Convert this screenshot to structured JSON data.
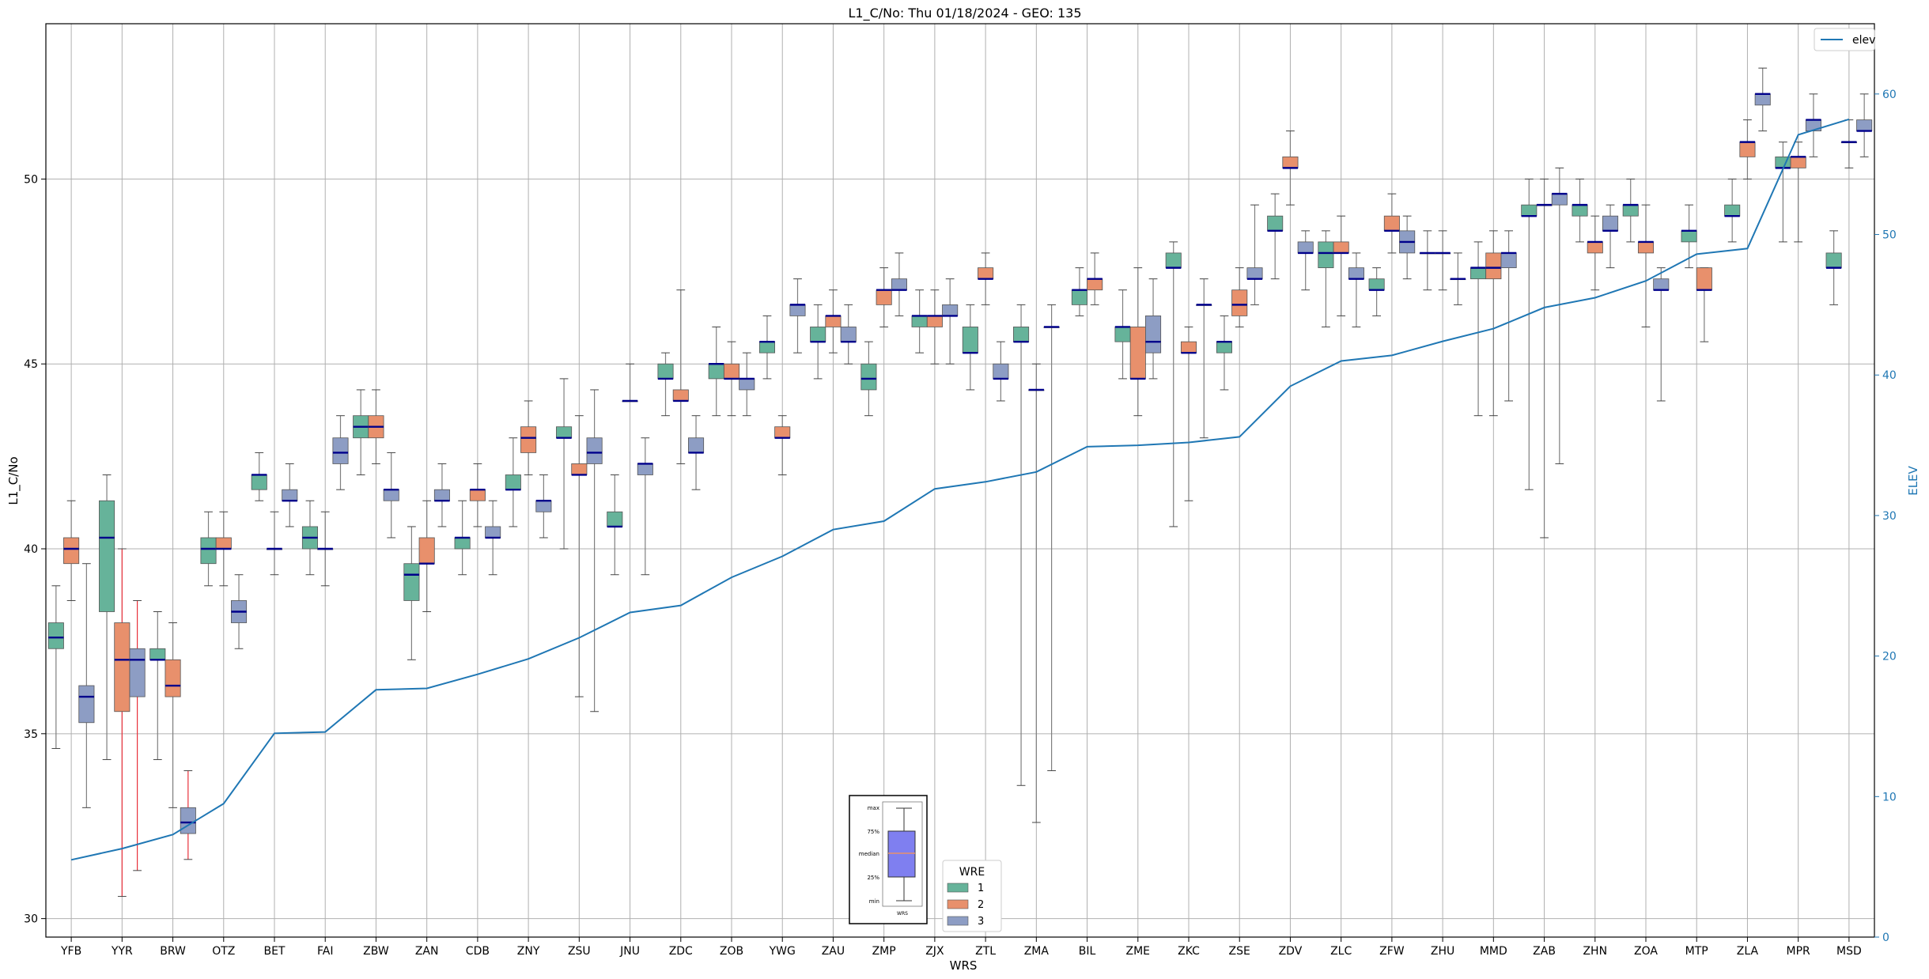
{
  "chart_data": {
    "type": "box",
    "title": "L1_C/No: Thu 01/18/2024 - GEO: 135",
    "xlabel": "WRS",
    "ylabel": "L1_C/No",
    "y2label": "ELEV",
    "ylim": [
      29.5,
      54.2
    ],
    "y2lim": [
      0,
      65.0
    ],
    "yticks": [
      30,
      35,
      40,
      45,
      50
    ],
    "y2ticks": [
      0,
      10,
      20,
      30,
      40,
      50,
      60
    ],
    "grid": true,
    "colors": {
      "1": "#66b39a",
      "2": "#e8906c",
      "3": "#8d9dc4",
      "elev": "#1f77b4",
      "median": "#00008b",
      "whisker": "#7f7f7f",
      "red_whisker": "#e8303a"
    },
    "categories": [
      "YFB",
      "YYR",
      "BRW",
      "OTZ",
      "BET",
      "FAI",
      "ZBW",
      "ZAN",
      "CDB",
      "ZNY",
      "ZSU",
      "JNU",
      "ZDC",
      "ZOB",
      "YWG",
      "ZAU",
      "ZMP",
      "ZJX",
      "ZTL",
      "ZMA",
      "BIL",
      "ZME",
      "ZKC",
      "ZSE",
      "ZDV",
      "ZLC",
      "ZFW",
      "ZHU",
      "MMD",
      "ZAB",
      "ZHN",
      "ZOA",
      "MTP",
      "ZLA",
      "MPR",
      "MSD"
    ],
    "boxes": {
      "YFB": [
        [
          34.6,
          37.3,
          37.6,
          38.0,
          39.0
        ],
        [
          38.6,
          39.6,
          40.0,
          40.3,
          41.3
        ],
        [
          33.0,
          35.3,
          36.0,
          36.3,
          39.6
        ]
      ],
      "YYR": [
        [
          34.3,
          38.3,
          40.3,
          41.3,
          42.0
        ],
        [
          30.6,
          35.6,
          37.0,
          38.0,
          40.0,
          "red"
        ],
        [
          31.3,
          36.0,
          37.0,
          37.3,
          38.6,
          "red"
        ]
      ],
      "BRW": [
        [
          34.3,
          37.0,
          37.0,
          37.3,
          38.3
        ],
        [
          33.0,
          36.0,
          36.3,
          37.0,
          38.0
        ],
        [
          31.6,
          32.3,
          32.6,
          33.0,
          34.0,
          "red"
        ]
      ],
      "OTZ": [
        [
          39.0,
          39.6,
          40.0,
          40.3,
          41.0
        ],
        [
          39.0,
          40.0,
          40.0,
          40.3,
          41.0
        ],
        [
          37.3,
          38.0,
          38.3,
          38.6,
          39.3
        ]
      ],
      "BET": [
        [
          41.3,
          41.6,
          42.0,
          42.0,
          42.6
        ],
        [
          39.3,
          40.0,
          40.0,
          40.0,
          41.0
        ],
        [
          40.6,
          41.3,
          41.3,
          41.6,
          42.3
        ]
      ],
      "FAI": [
        [
          39.3,
          40.0,
          40.3,
          40.6,
          41.3
        ],
        [
          39.0,
          40.0,
          40.0,
          40.0,
          41.0
        ],
        [
          41.6,
          42.3,
          42.6,
          43.0,
          43.6
        ]
      ],
      "ZBW": [
        [
          42.0,
          43.0,
          43.3,
          43.6,
          44.3
        ],
        [
          42.3,
          43.0,
          43.3,
          43.6,
          44.3
        ],
        [
          40.3,
          41.3,
          41.6,
          41.6,
          42.6
        ]
      ],
      "ZAN": [
        [
          37.0,
          38.6,
          39.3,
          39.6,
          40.6
        ],
        [
          38.3,
          39.6,
          39.6,
          40.3,
          41.3
        ],
        [
          40.6,
          41.3,
          41.3,
          41.6,
          42.3
        ]
      ],
      "CDB": [
        [
          39.3,
          40.0,
          40.3,
          40.3,
          41.3
        ],
        [
          40.6,
          41.3,
          41.6,
          41.6,
          42.3
        ],
        [
          39.3,
          40.3,
          40.3,
          40.6,
          41.3
        ]
      ],
      "ZNY": [
        [
          40.6,
          41.6,
          41.6,
          42.0,
          43.0
        ],
        [
          42.0,
          42.6,
          43.0,
          43.3,
          44.0
        ],
        [
          40.3,
          41.0,
          41.3,
          41.3,
          42.0
        ]
      ],
      "ZSU": [
        [
          40.0,
          43.0,
          43.0,
          43.3,
          44.6
        ],
        [
          36.0,
          42.0,
          42.0,
          42.3,
          43.6
        ],
        [
          35.6,
          42.3,
          42.6,
          43.0,
          44.3
        ]
      ],
      "JNU": [
        [
          39.3,
          40.6,
          40.6,
          41.0,
          42.0
        ],
        [
          44.0,
          44.0,
          44.0,
          44.0,
          45.0
        ],
        [
          39.3,
          42.0,
          42.3,
          42.3,
          43.0
        ]
      ],
      "ZDC": [
        [
          43.6,
          44.6,
          44.6,
          45.0,
          45.3
        ],
        [
          42.3,
          44.0,
          44.0,
          44.3,
          47.0
        ],
        [
          41.6,
          42.6,
          42.6,
          43.0,
          43.6
        ]
      ],
      "ZOB": [
        [
          43.6,
          44.6,
          45.0,
          45.0,
          46.0
        ],
        [
          43.6,
          44.6,
          44.6,
          45.0,
          45.6
        ],
        [
          43.6,
          44.3,
          44.6,
          44.6,
          45.3
        ]
      ],
      "YWG": [
        [
          44.6,
          45.3,
          45.6,
          45.6,
          46.3
        ],
        [
          42.0,
          43.0,
          43.0,
          43.3,
          43.6
        ],
        [
          45.3,
          46.3,
          46.6,
          46.6,
          47.3
        ]
      ],
      "ZAU": [
        [
          44.6,
          45.6,
          45.6,
          46.0,
          46.6
        ],
        [
          45.3,
          46.0,
          46.3,
          46.3,
          47.0
        ],
        [
          45.0,
          45.6,
          45.6,
          46.0,
          46.6
        ]
      ],
      "ZMP": [
        [
          43.6,
          44.3,
          44.6,
          45.0,
          45.6
        ],
        [
          46.0,
          46.6,
          47.0,
          47.0,
          47.6
        ],
        [
          46.3,
          47.0,
          47.0,
          47.3,
          48.0
        ]
      ],
      "ZJX": [
        [
          45.3,
          46.0,
          46.3,
          46.3,
          47.0
        ],
        [
          45.0,
          46.0,
          46.3,
          46.3,
          47.0
        ],
        [
          45.0,
          46.3,
          46.3,
          46.6,
          47.3
        ]
      ],
      "ZTL": [
        [
          44.3,
          45.3,
          45.3,
          46.0,
          46.6
        ],
        [
          46.6,
          47.3,
          47.3,
          47.6,
          48.0
        ],
        [
          44.0,
          44.6,
          44.6,
          45.0,
          45.6
        ]
      ],
      "ZMA": [
        [
          33.6,
          45.6,
          45.6,
          46.0,
          46.6
        ],
        [
          32.6,
          44.3,
          44.3,
          44.3,
          45.0
        ],
        [
          34.0,
          46.0,
          46.0,
          46.0,
          46.6
        ]
      ],
      "BIL": [
        [
          46.3,
          46.6,
          47.0,
          47.0,
          47.6
        ],
        [
          46.6,
          47.0,
          47.3,
          47.3,
          48.0
        ]
      ],
      "ZME": [
        [
          44.6,
          45.6,
          46.0,
          46.0,
          47.0
        ],
        [
          43.6,
          44.6,
          44.6,
          46.0,
          47.6
        ],
        [
          44.6,
          45.3,
          45.6,
          46.3,
          47.3
        ]
      ],
      "ZKC": [
        [
          40.6,
          47.6,
          47.6,
          48.0,
          48.3
        ],
        [
          41.3,
          45.3,
          45.3,
          45.6,
          46.0
        ],
        [
          43.0,
          46.6,
          46.6,
          46.6,
          47.3
        ]
      ],
      "ZSE": [
        [
          44.3,
          45.3,
          45.6,
          45.6,
          46.3
        ],
        [
          46.0,
          46.3,
          46.6,
          47.0,
          47.6
        ],
        [
          46.6,
          47.3,
          47.3,
          47.6,
          49.3
        ]
      ],
      "ZDV": [
        [
          47.3,
          48.6,
          48.6,
          49.0,
          49.6
        ],
        [
          49.3,
          50.3,
          50.3,
          50.6,
          51.3
        ],
        [
          47.0,
          48.0,
          48.0,
          48.3,
          48.6
        ]
      ],
      "ZLC": [
        [
          46.0,
          47.6,
          48.0,
          48.3,
          48.6
        ],
        [
          46.3,
          48.0,
          48.0,
          48.3,
          49.0
        ],
        [
          46.0,
          47.3,
          47.3,
          47.6,
          48.0
        ]
      ],
      "ZFW": [
        [
          46.3,
          47.0,
          47.0,
          47.3,
          47.6
        ],
        [
          48.0,
          48.6,
          48.6,
          49.0,
          49.6
        ],
        [
          47.3,
          48.0,
          48.3,
          48.6,
          49.0
        ]
      ],
      "ZHU": [
        [
          47.0,
          48.0,
          48.0,
          48.0,
          48.6
        ],
        [
          47.0,
          48.0,
          48.0,
          48.0,
          48.6
        ],
        [
          46.6,
          47.3,
          47.3,
          47.3,
          48.0
        ]
      ],
      "MMD": [
        [
          43.6,
          47.3,
          47.6,
          47.6,
          48.3
        ],
        [
          43.6,
          47.3,
          47.6,
          48.0,
          48.6
        ],
        [
          44.0,
          47.6,
          48.0,
          48.0,
          48.6
        ]
      ],
      "ZAB": [
        [
          41.6,
          49.0,
          49.0,
          49.3,
          50.0
        ],
        [
          40.3,
          49.3,
          49.3,
          49.3,
          50.0
        ],
        [
          42.3,
          49.3,
          49.6,
          49.6,
          50.3
        ]
      ],
      "ZHN": [
        [
          48.3,
          49.0,
          49.3,
          49.3,
          50.0
        ],
        [
          47.0,
          48.0,
          48.3,
          48.3,
          49.0
        ],
        [
          47.6,
          48.6,
          48.6,
          49.0,
          49.3
        ]
      ],
      "ZOA": [
        [
          48.3,
          49.0,
          49.3,
          49.3,
          50.0
        ],
        [
          46.0,
          48.0,
          48.3,
          48.3,
          49.3
        ],
        [
          44.0,
          47.0,
          47.0,
          47.3,
          47.6
        ]
      ],
      "MTP": [
        [
          47.6,
          48.3,
          48.6,
          48.6,
          49.3
        ],
        [
          45.6,
          47.0,
          47.0,
          47.6,
          47.6
        ]
      ],
      "ZLA": [
        [
          48.3,
          49.0,
          49.0,
          49.3,
          50.0
        ],
        [
          50.0,
          50.6,
          51.0,
          51.0,
          51.6
        ],
        [
          51.3,
          52.0,
          52.3,
          52.3,
          53.0
        ]
      ],
      "MPR": [
        [
          48.3,
          50.3,
          50.3,
          50.6,
          51.0
        ],
        [
          48.3,
          50.3,
          50.6,
          50.6,
          51.0
        ],
        [
          50.6,
          51.3,
          51.6,
          51.6,
          52.3
        ]
      ],
      "MSD": [
        [
          46.6,
          47.6,
          47.6,
          48.0,
          48.6
        ],
        [
          50.3,
          51.0,
          51.0,
          51.0,
          51.6
        ],
        [
          50.6,
          51.3,
          51.3,
          51.6,
          52.3
        ]
      ]
    },
    "elev": [
      5.5,
      6.3,
      7.3,
      9.5,
      14.5,
      14.6,
      17.6,
      17.7,
      18.7,
      19.8,
      21.3,
      23.1,
      23.6,
      25.6,
      27.1,
      29.0,
      29.6,
      31.9,
      32.4,
      33.1,
      34.9,
      35.0,
      35.2,
      35.6,
      39.2,
      41.0,
      41.4,
      42.4,
      43.3,
      44.8,
      45.5,
      46.7,
      48.6,
      49.0,
      57.1,
      58.2
    ],
    "legend": {
      "title": "WRE",
      "entries": [
        "1",
        "2",
        "3"
      ],
      "line_label": "elev",
      "diagram_labels": [
        "max",
        "75%",
        "median",
        "25%",
        "min"
      ],
      "diagram_xlabel": "WRS"
    }
  }
}
